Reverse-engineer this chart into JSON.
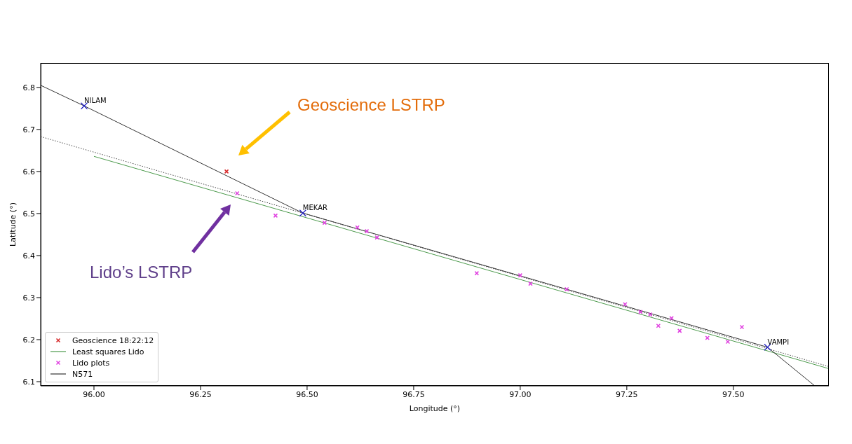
{
  "chart_data": {
    "type": "scatter",
    "xlabel": "Longitude (°)",
    "ylabel": "Latitude (°)",
    "xlim": [
      95.875,
      97.724
    ],
    "ylim": [
      6.09,
      6.858
    ],
    "xticks": [
      {
        "value": 96,
        "label": "96.00"
      },
      96.25,
      {
        "value": 96.5,
        "label": "96.50"
      },
      96.75,
      {
        "value": 97,
        "label": "97.00"
      },
      97.25,
      {
        "value": 97.5,
        "label": "97.50"
      }
    ],
    "yticks": [
      6.1,
      6.2,
      6.3,
      6.4,
      6.5,
      6.6,
      6.7,
      6.8
    ],
    "grid": false,
    "legend": "bottom left",
    "marker": "cross",
    "series": [
      {
        "name": "Geoscience 18:22:12",
        "color": "#d62728",
        "x": [
          96.311
        ],
        "values": [
          6.6
        ]
      },
      {
        "name": "Least squares Lido",
        "type": "line",
        "color": "#4c9a4c",
        "x": [
          96.0,
          97.724
        ],
        "values": [
          6.636,
          6.131
        ],
        "marker": "none"
      },
      {
        "name": "Lido plots",
        "color": "#e040e0",
        "x": [
          96.336,
          96.426,
          96.541,
          96.618,
          96.64,
          96.664,
          96.898,
          97.0,
          97.024,
          97.109,
          97.246,
          97.282,
          97.305,
          97.324,
          97.355,
          97.374,
          97.439,
          97.487,
          97.52
        ],
        "values": [
          6.548,
          6.495,
          6.478,
          6.467,
          6.458,
          6.443,
          6.358,
          6.353,
          6.333,
          6.32,
          6.284,
          6.266,
          6.26,
          6.233,
          6.251,
          6.221,
          6.204,
          6.195,
          6.23
        ]
      },
      {
        "name": "N571",
        "type": "line",
        "color": "#333333",
        "x": [
          95.875,
          95.977,
          96.49,
          97.58,
          97.691
        ],
        "values": [
          6.805,
          6.756,
          6.501,
          6.182,
          6.09
        ],
        "marker": "none"
      },
      {
        "type": "line",
        "color": "#444444",
        "line_style": "dotted",
        "x": [
          95.875,
          97.724
        ],
        "values": [
          6.683,
          6.136
        ],
        "marker": "none"
      },
      {
        "color": "#2020c0",
        "x": [
          95.977,
          96.49,
          97.58
        ],
        "values": [
          6.756,
          6.501,
          6.182
        ]
      }
    ],
    "annotations": [
      {
        "text": "NILAM",
        "x": 95.977,
        "y": 6.756
      },
      {
        "text": "MEKAR",
        "x": 96.49,
        "y": 6.501
      },
      {
        "text": "VAMPI",
        "x": 97.58,
        "y": 6.182
      },
      "Geoscience LSTRP",
      "Lido’s LSTRP"
    ]
  }
}
